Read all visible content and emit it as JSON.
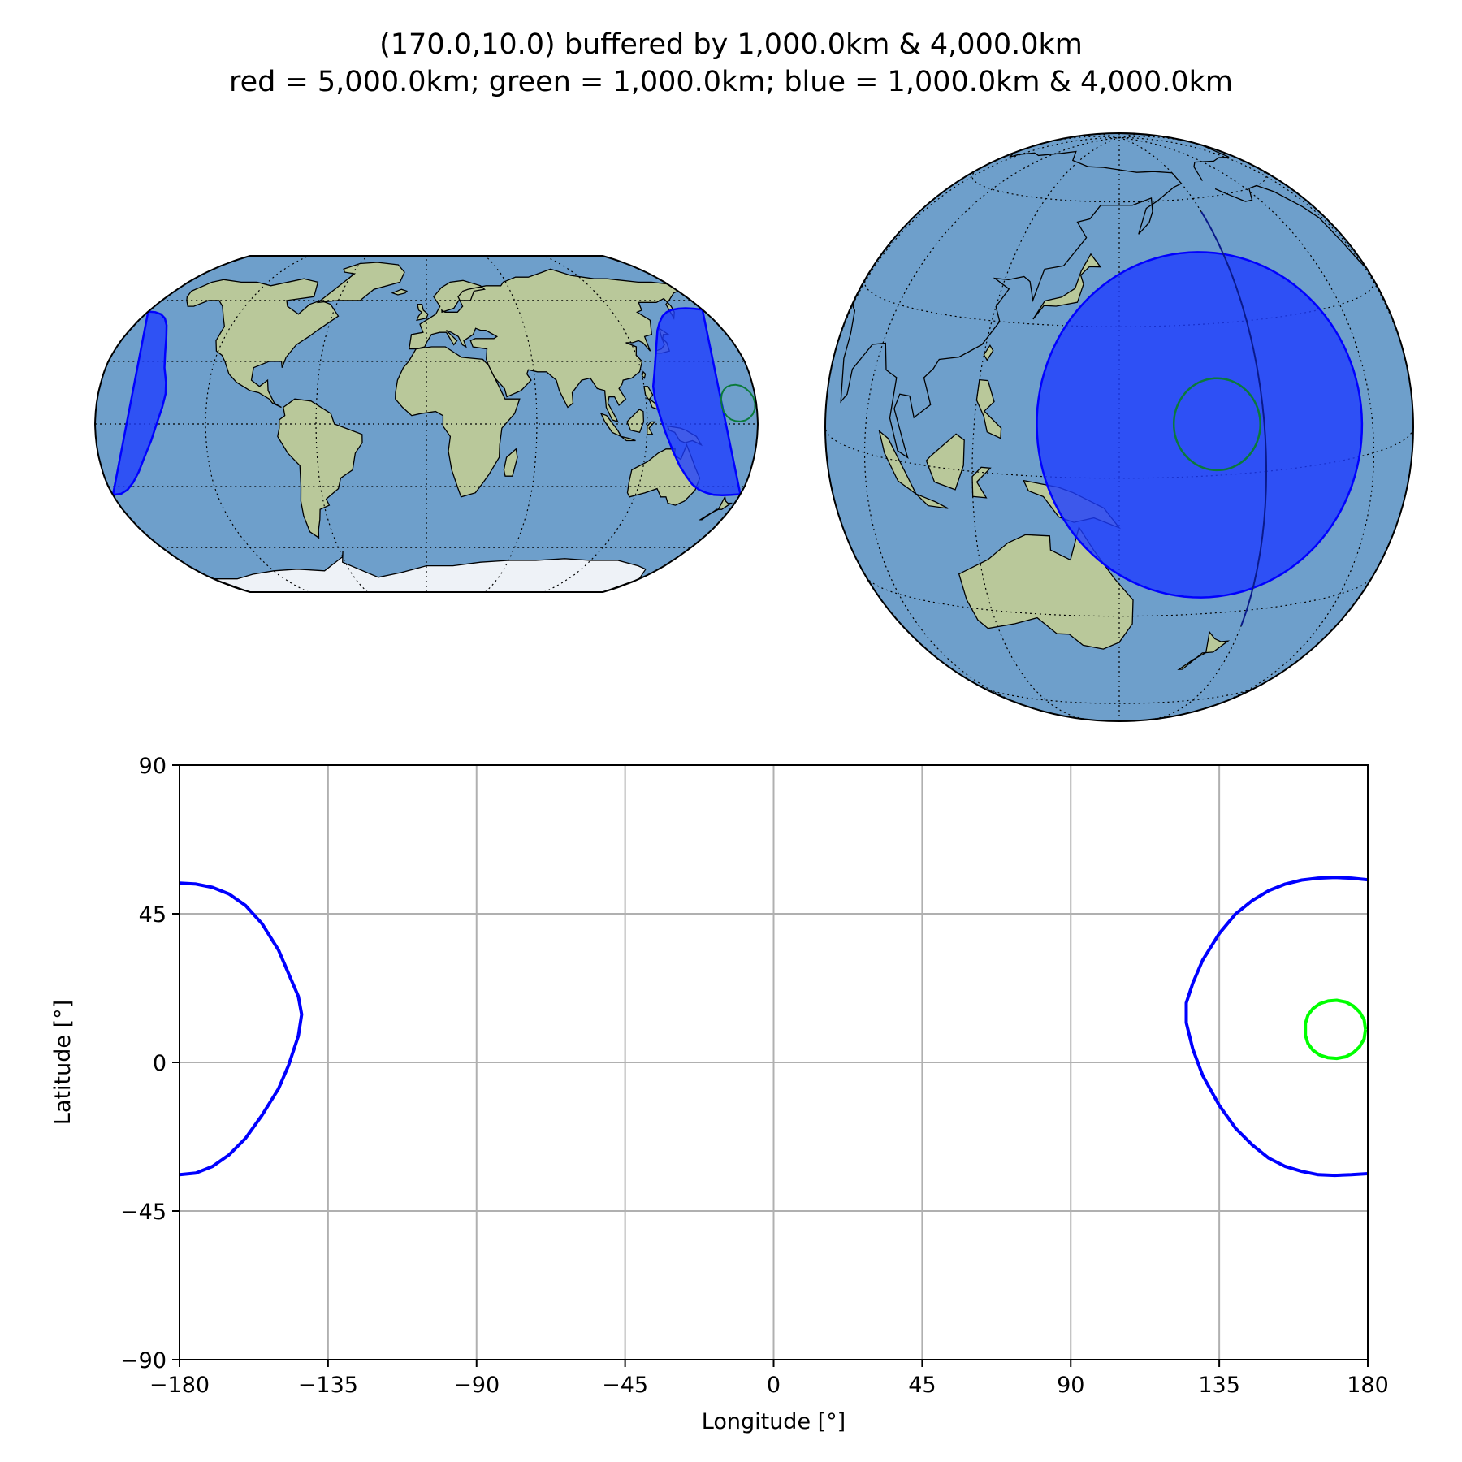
{
  "figure": {
    "title_line1": "(170.0,10.0) buffered by 1,000.0km & 4,000.0km",
    "title_line2": "red = 5,000.0km; green = 1,000.0km; blue = 1,000.0km & 4,000.0km"
  },
  "colors": {
    "ocean": "#6e9fcb",
    "land": "#b9c89a",
    "ice": "#eef2f7",
    "buffer_blue": "#0000ff",
    "buffer_green": "#00ff00",
    "buffer_green_dark": "#0b7a3a",
    "grid": "#b0b0b0"
  },
  "maps": [
    {
      "name": "robinson-map",
      "projection": "Robinson",
      "central_longitude": 0
    },
    {
      "name": "orthographic-map",
      "projection": "Orthographic",
      "central_longitude": 150,
      "central_latitude": 10
    }
  ],
  "chart_data": {
    "type": "line",
    "xlabel": "Longitude [°]",
    "ylabel": "Latitude [°]",
    "xlim": [
      -180,
      180
    ],
    "ylim": [
      -90,
      90
    ],
    "xticks": [
      -180,
      -135,
      -90,
      -45,
      0,
      45,
      90,
      135,
      180
    ],
    "yticks": [
      -90,
      -45,
      0,
      45,
      90
    ],
    "xtick_labels": [
      "−180",
      "−135",
      "−90",
      "−45",
      "0",
      "45",
      "90",
      "135",
      "180"
    ],
    "ytick_labels": [
      "−90",
      "−45",
      "0",
      "45",
      "90"
    ],
    "grid": true,
    "series": [
      {
        "color": "#0000ff",
        "x": [
          -180,
          -175,
          -170,
          -165,
          -160,
          -155,
          -150,
          -147,
          -144,
          -143,
          -144,
          -147,
          -150,
          -155,
          -160,
          -165,
          -170,
          -175,
          -180
        ],
        "y": [
          54.3,
          54,
          53,
          51,
          47.5,
          42,
          34,
          27,
          20,
          14.5,
          8,
          -1,
          -8,
          -16,
          -23,
          -28,
          -31.5,
          -33.5,
          -34
        ]
      },
      {
        "color": "#0000ff",
        "x": [
          180,
          175,
          170,
          165,
          160,
          155,
          150,
          145,
          140,
          135,
          130,
          127,
          125,
          125,
          127,
          130,
          135,
          140,
          145,
          150,
          155,
          160,
          165,
          170,
          175,
          180
        ],
        "y": [
          55.3,
          55.8,
          56,
          55.8,
          55.2,
          54,
          52,
          49,
          45,
          39,
          31,
          24,
          18,
          12,
          4,
          -4,
          -13,
          -20,
          -25,
          -29,
          -31.5,
          -33,
          -34,
          -34.2,
          -34,
          -33.7
        ]
      },
      {
        "color": "#00ff00",
        "x": [
          179.3,
          178.9,
          177.5,
          175.6,
          173.3,
          170.6,
          168.0,
          165.5,
          163.4,
          161.9,
          161.1,
          161.1,
          161.9,
          163.4,
          165.5,
          168.0,
          170.6,
          173.3,
          175.6,
          177.5,
          178.9,
          179.3
        ],
        "y": [
          10.0,
          12.9,
          15.3,
          17.1,
          18.3,
          18.8,
          18.6,
          17.8,
          16.3,
          14.3,
          11.8,
          8.2,
          5.7,
          3.7,
          2.2,
          1.4,
          1.2,
          1.7,
          2.9,
          4.7,
          7.1,
          10.0
        ]
      }
    ]
  }
}
